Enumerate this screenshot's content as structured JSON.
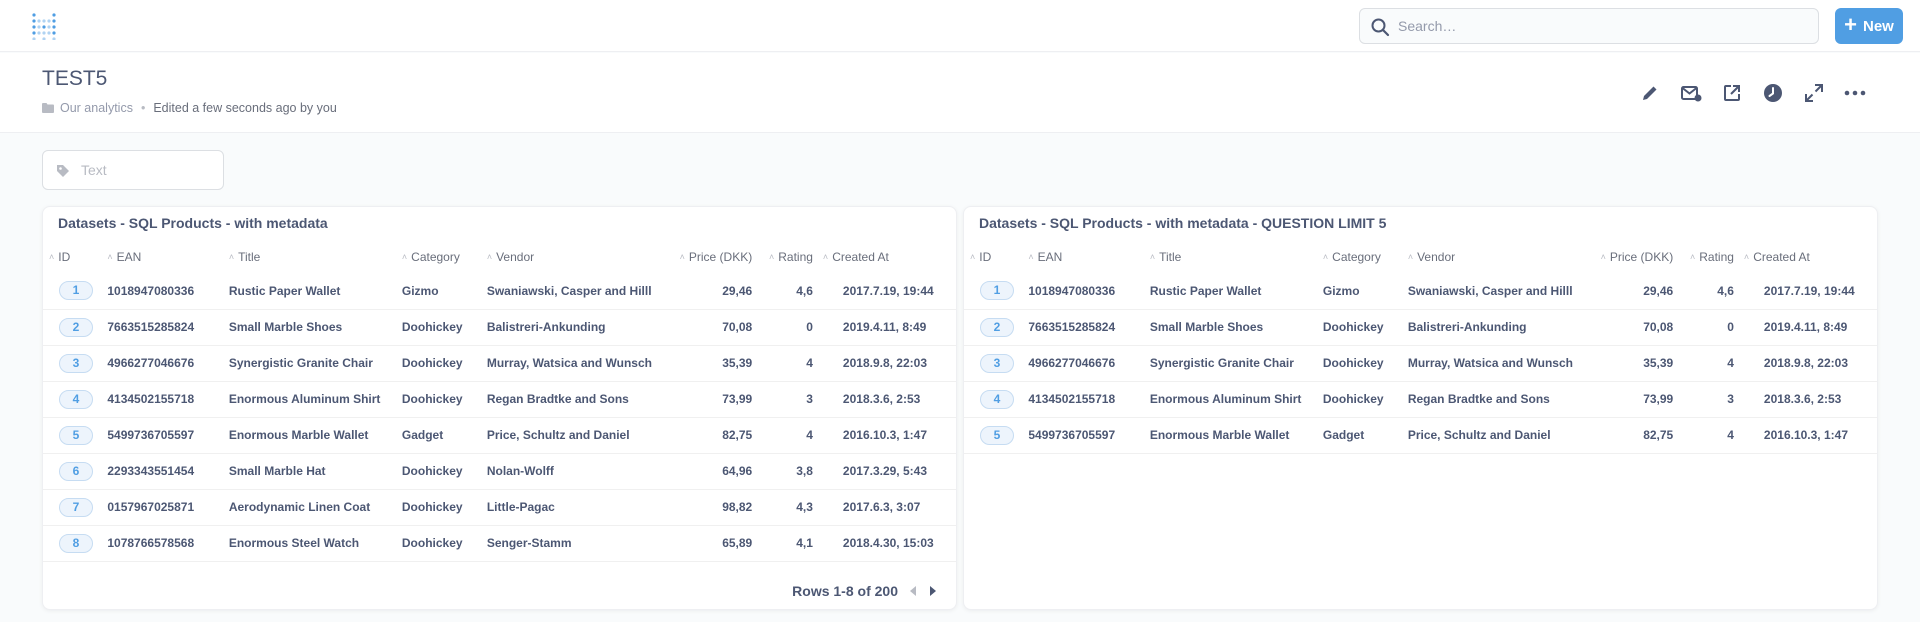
{
  "search": {
    "placeholder": "Search…"
  },
  "new_button": {
    "label": "New"
  },
  "dashboard": {
    "title": "TEST5",
    "collection": "Our analytics",
    "edited": "Edited a few seconds ago by you"
  },
  "filter": {
    "placeholder": "Text"
  },
  "columns": [
    "ID",
    "EAN",
    "Title",
    "Category",
    "Vendor",
    "Price (DKK)",
    "Rating",
    "Created At"
  ],
  "card1": {
    "title": "Datasets - SQL Products - with metadata",
    "rows": [
      [
        "1",
        "1018947080336",
        "Rustic Paper Wallet",
        "Gizmo",
        "Swaniawski, Casper and Hilll",
        "29,46",
        "4,6",
        "2017.7.19, 19:44"
      ],
      [
        "2",
        "7663515285824",
        "Small Marble Shoes",
        "Doohickey",
        "Balistreri-Ankunding",
        "70,08",
        "0",
        "2019.4.11, 8:49"
      ],
      [
        "3",
        "4966277046676",
        "Synergistic Granite Chair",
        "Doohickey",
        "Murray, Watsica and Wunsch",
        "35,39",
        "4",
        "2018.9.8, 22:03"
      ],
      [
        "4",
        "4134502155718",
        "Enormous Aluminum Shirt",
        "Doohickey",
        "Regan Bradtke and Sons",
        "73,99",
        "3",
        "2018.3.6, 2:53"
      ],
      [
        "5",
        "5499736705597",
        "Enormous Marble Wallet",
        "Gadget",
        "Price, Schultz and Daniel",
        "82,75",
        "4",
        "2016.10.3, 1:47"
      ],
      [
        "6",
        "2293343551454",
        "Small Marble Hat",
        "Doohickey",
        "Nolan-Wolff",
        "64,96",
        "3,8",
        "2017.3.29, 5:43"
      ],
      [
        "7",
        "0157967025871",
        "Aerodynamic Linen Coat",
        "Doohickey",
        "Little-Pagac",
        "98,82",
        "4,3",
        "2017.6.3, 3:07"
      ],
      [
        "8",
        "1078766578568",
        "Enormous Steel Watch",
        "Doohickey",
        "Senger-Stamm",
        "65,89",
        "4,1",
        "2018.4.30, 15:03"
      ]
    ],
    "pagination": "Rows 1-8 of 200"
  },
  "card2": {
    "title": "Datasets - SQL Products - with metadata - QUESTION LIMIT 5",
    "rows": [
      [
        "1",
        "1018947080336",
        "Rustic Paper Wallet",
        "Gizmo",
        "Swaniawski, Casper and Hilll",
        "29,46",
        "4,6",
        "2017.7.19, 19:44"
      ],
      [
        "2",
        "7663515285824",
        "Small Marble Shoes",
        "Doohickey",
        "Balistreri-Ankunding",
        "70,08",
        "0",
        "2019.4.11, 8:49"
      ],
      [
        "3",
        "4966277046676",
        "Synergistic Granite Chair",
        "Doohickey",
        "Murray, Watsica and Wunsch",
        "35,39",
        "4",
        "2018.9.8, 22:03"
      ],
      [
        "4",
        "4134502155718",
        "Enormous Aluminum Shirt",
        "Doohickey",
        "Regan Bradtke and Sons",
        "73,99",
        "3",
        "2018.3.6, 2:53"
      ],
      [
        "5",
        "5499736705597",
        "Enormous Marble Wallet",
        "Gadget",
        "Price, Schultz and Daniel",
        "82,75",
        "4",
        "2016.10.3, 1:47"
      ]
    ]
  },
  "colors": {
    "brand": "#509ee3",
    "text": "#4c5773",
    "muted": "#949aab"
  }
}
